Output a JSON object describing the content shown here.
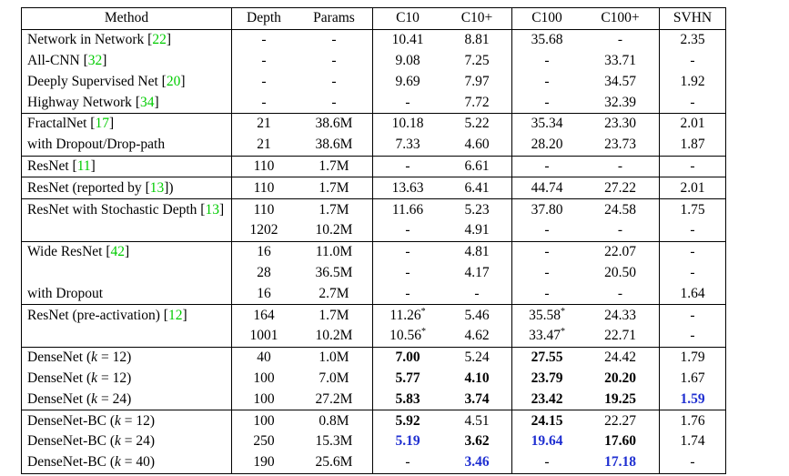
{
  "columns": [
    "Method",
    "Depth",
    "Params",
    "C10",
    "C10+",
    "C100",
    "C100+",
    "SVHN"
  ],
  "rows": [
    {
      "name": "Network in Network",
      "cite": "22",
      "k": null,
      "depth": "-",
      "params": "-",
      "c10": "10.41",
      "c10p": "8.81",
      "c100": "35.68",
      "c100p": "-",
      "svhn": "2.35",
      "sep": true
    },
    {
      "name": "All-CNN",
      "cite": "32",
      "k": null,
      "depth": "-",
      "params": "-",
      "c10": "9.08",
      "c10p": "7.25",
      "c100": "-",
      "c100p": "33.71",
      "svhn": "-"
    },
    {
      "name": "Deeply Supervised Net",
      "cite": "20",
      "k": null,
      "depth": "-",
      "params": "-",
      "c10": "9.69",
      "c10p": "7.97",
      "c100": "-",
      "c100p": "34.57",
      "svhn": "1.92"
    },
    {
      "name": "Highway Network",
      "cite": "34",
      "k": null,
      "depth": "-",
      "params": "-",
      "c10": "-",
      "c10p": "7.72",
      "c100": "-",
      "c100p": "32.39",
      "svhn": "-"
    },
    {
      "name": "FractalNet",
      "cite": "17",
      "k": null,
      "depth": "21",
      "params": "38.6M",
      "c10": "10.18",
      "c10p": "5.22",
      "c100": "35.34",
      "c100p": "23.30",
      "svhn": "2.01",
      "sep": true
    },
    {
      "name": "with Dropout/Drop-path",
      "cite": null,
      "k": null,
      "depth": "21",
      "params": "38.6M",
      "c10": "7.33",
      "c10p": "4.60",
      "c100": "28.20",
      "c100p": "23.73",
      "svhn": "1.87"
    },
    {
      "name": "ResNet",
      "cite": "11",
      "k": null,
      "depth": "110",
      "params": "1.7M",
      "c10": "-",
      "c10p": "6.61",
      "c100": "-",
      "c100p": "-",
      "svhn": "-",
      "sep": true
    },
    {
      "name": "ResNet (reported by",
      "cite": "13",
      "suffix": ")",
      "k": null,
      "depth": "110",
      "params": "1.7M",
      "c10": "13.63",
      "c10p": "6.41",
      "c100": "44.74",
      "c100p": "27.22",
      "svhn": "2.01",
      "sep": true
    },
    {
      "name": "ResNet with Stochastic Depth",
      "cite": "13",
      "k": null,
      "depth": "110",
      "params": "1.7M",
      "c10": "11.66",
      "c10p": "5.23",
      "c100": "37.80",
      "c100p": "24.58",
      "svhn": "1.75",
      "sep": true
    },
    {
      "name": "",
      "cite": null,
      "k": null,
      "depth": "1202",
      "params": "10.2M",
      "c10": "-",
      "c10p": "4.91",
      "c100": "-",
      "c100p": "-",
      "svhn": "-"
    },
    {
      "name": "Wide ResNet",
      "cite": "42",
      "k": null,
      "depth": "16",
      "params": "11.0M",
      "c10": "-",
      "c10p": "4.81",
      "c100": "-",
      "c100p": "22.07",
      "svhn": "-",
      "sep": true
    },
    {
      "name": "",
      "cite": null,
      "k": null,
      "depth": "28",
      "params": "36.5M",
      "c10": "-",
      "c10p": "4.17",
      "c100": "-",
      "c100p": "20.50",
      "svhn": "-"
    },
    {
      "name": "with Dropout",
      "cite": null,
      "k": null,
      "depth": "16",
      "params": "2.7M",
      "c10": "-",
      "c10p": "-",
      "c100": "-",
      "c100p": "-",
      "svhn": "1.64"
    },
    {
      "name": "ResNet (pre-activation)",
      "cite": "12",
      "k": null,
      "depth": "164",
      "params": "1.7M",
      "c10": "11.26",
      "c10_star": "*",
      "c10p": "5.46",
      "c100": "35.58",
      "c100_star": "*",
      "c100p": "24.33",
      "svhn": "-",
      "sep": true
    },
    {
      "name": "",
      "cite": null,
      "k": null,
      "depth": "1001",
      "params": "10.2M",
      "c10": "10.56",
      "c10_star": "*",
      "c10p": "4.62",
      "c100": "33.47",
      "c100_star": "*",
      "c100p": "22.71",
      "svhn": "-"
    },
    {
      "name": "DenseNet",
      "cite": null,
      "k": "12",
      "depth": "40",
      "params": "1.0M",
      "c10": "7.00",
      "c10p": "5.24",
      "c100": "27.55",
      "c100p": "24.42",
      "svhn": "1.79",
      "sep": true,
      "bold": [
        "c10",
        "c100"
      ]
    },
    {
      "name": "DenseNet",
      "cite": null,
      "k": "12",
      "depth": "100",
      "params": "7.0M",
      "c10": "5.77",
      "c10p": "4.10",
      "c100": "23.79",
      "c100p": "20.20",
      "svhn": "1.67",
      "bold": [
        "c10",
        "c10p",
        "c100",
        "c100p"
      ]
    },
    {
      "name": "DenseNet",
      "cite": null,
      "k": "24",
      "depth": "100",
      "params": "27.2M",
      "c10": "5.83",
      "c10p": "3.74",
      "c100": "23.42",
      "c100p": "19.25",
      "svhn": "1.59",
      "bold": [
        "c10",
        "c10p",
        "c100",
        "c100p"
      ],
      "blue": [
        "svhn"
      ]
    },
    {
      "name": "DenseNet-BC",
      "cite": null,
      "k": "12",
      "depth": "100",
      "params": "0.8M",
      "c10": "5.92",
      "c10p": "4.51",
      "c100": "24.15",
      "c100p": "22.27",
      "svhn": "1.76",
      "sep": true,
      "bold": [
        "c10",
        "c100"
      ]
    },
    {
      "name": "DenseNet-BC",
      "cite": null,
      "k": "24",
      "depth": "250",
      "params": "15.3M",
      "c10": "5.19",
      "c10p": "3.62",
      "c100": "19.64",
      "c100p": "17.60",
      "svhn": "1.74",
      "bold": [
        "c10p",
        "c100p"
      ],
      "blue": [
        "c10",
        "c100"
      ]
    },
    {
      "name": "DenseNet-BC",
      "cite": null,
      "k": "40",
      "depth": "190",
      "params": "25.6M",
      "c10": "-",
      "c10p": "3.46",
      "c100": "-",
      "c100p": "17.18",
      "svhn": "-",
      "blue": [
        "c10p",
        "c100p"
      ],
      "last": true
    }
  ],
  "colors": {
    "cite": "#00cc00",
    "best": "#1f2fd1"
  }
}
